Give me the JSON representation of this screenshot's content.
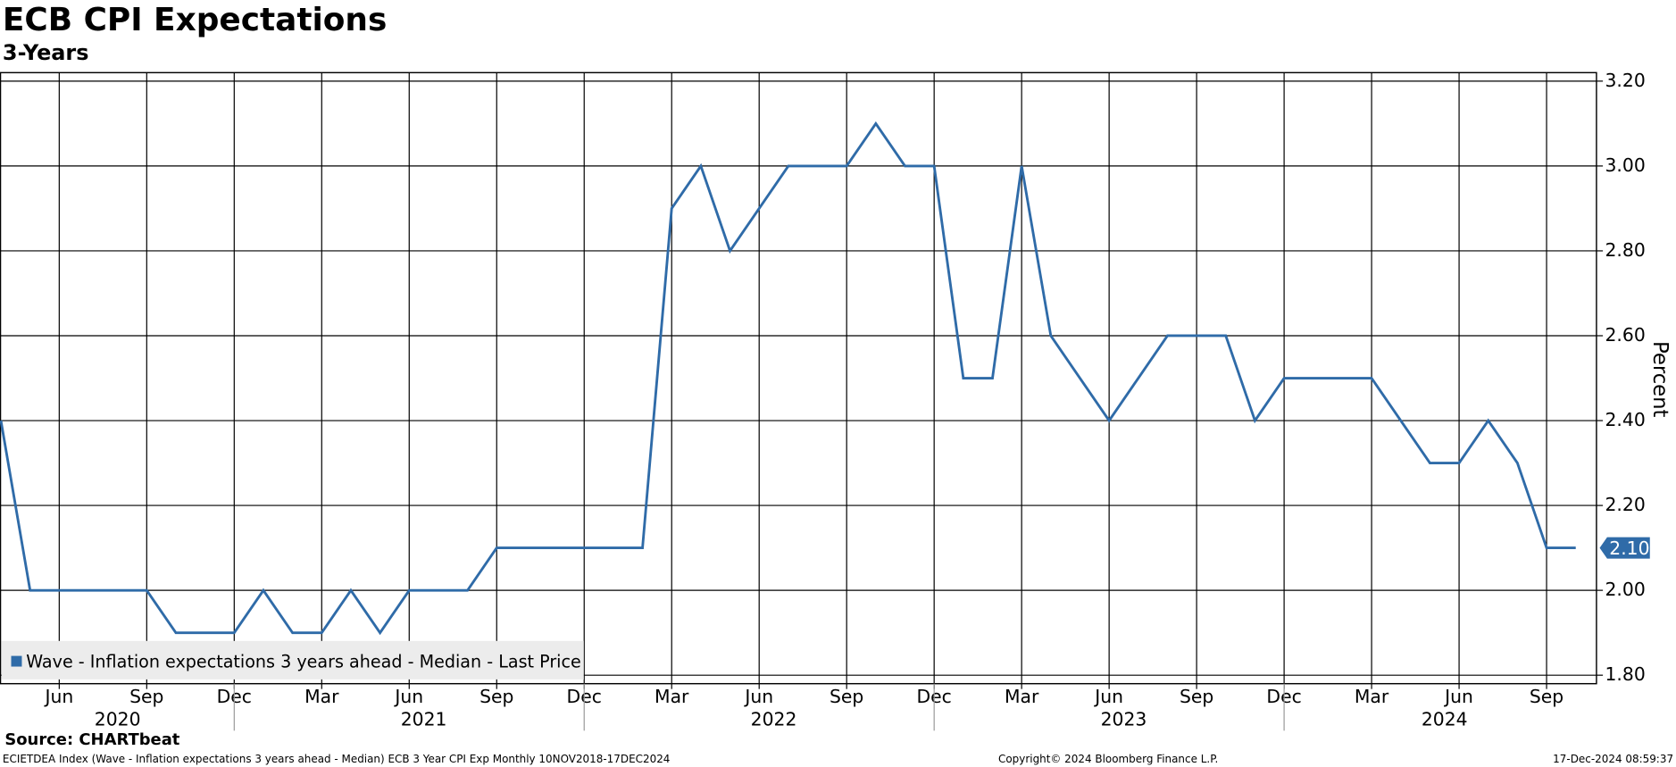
{
  "chart_data": {
    "type": "line",
    "title": "ECB CPI Expectations",
    "subtitle": "3-Years",
    "y_label": "Percent",
    "x": [
      "2020-04",
      "2020-05",
      "2020-06",
      "2020-07",
      "2020-08",
      "2020-09",
      "2020-10",
      "2020-11",
      "2020-12",
      "2021-01",
      "2021-02",
      "2021-03",
      "2021-04",
      "2021-05",
      "2021-06",
      "2021-07",
      "2021-08",
      "2021-09",
      "2021-10",
      "2021-11",
      "2021-12",
      "2022-01",
      "2022-02",
      "2022-03",
      "2022-04",
      "2022-05",
      "2022-06",
      "2022-07",
      "2022-08",
      "2022-09",
      "2022-10",
      "2022-11",
      "2022-12",
      "2023-01",
      "2023-02",
      "2023-03",
      "2023-04",
      "2023-05",
      "2023-06",
      "2023-07",
      "2023-08",
      "2023-09",
      "2023-10",
      "2023-11",
      "2023-12",
      "2024-01",
      "2024-02",
      "2024-03",
      "2024-04",
      "2024-05",
      "2024-06",
      "2024-07",
      "2024-08",
      "2024-09",
      "2024-10"
    ],
    "series": [
      {
        "name": "Wave - Inflation expectations 3 years ahead - Median - Last Price",
        "color": "#2f6ba8",
        "last_label": "2.10",
        "values": [
          2.4,
          2.0,
          2.0,
          2.0,
          2.0,
          2.0,
          1.9,
          1.9,
          1.9,
          2.0,
          1.9,
          1.9,
          2.0,
          1.9,
          2.0,
          2.0,
          2.0,
          2.1,
          2.1,
          2.1,
          2.1,
          2.1,
          2.1,
          2.9,
          3.0,
          2.8,
          2.9,
          3.0,
          3.0,
          3.0,
          3.1,
          3.0,
          3.0,
          2.5,
          2.5,
          3.0,
          2.6,
          2.5,
          2.4,
          2.5,
          2.6,
          2.6,
          2.6,
          2.4,
          2.5,
          2.5,
          2.5,
          2.5,
          2.4,
          2.3,
          2.3,
          2.4,
          2.3,
          2.1,
          2.1
        ]
      }
    ],
    "xticks": [
      {
        "value": "2020-06",
        "label": "Jun"
      },
      {
        "value": "2020-09",
        "label": "Sep"
      },
      {
        "value": "2020-12",
        "label": "Dec"
      },
      {
        "value": "2021-03",
        "label": "Mar"
      },
      {
        "value": "2021-06",
        "label": "Jun"
      },
      {
        "value": "2021-09",
        "label": "Sep"
      },
      {
        "value": "2021-12",
        "label": "Dec"
      },
      {
        "value": "2022-03",
        "label": "Mar"
      },
      {
        "value": "2022-06",
        "label": "Jun"
      },
      {
        "value": "2022-09",
        "label": "Sep"
      },
      {
        "value": "2022-12",
        "label": "Dec"
      },
      {
        "value": "2023-03",
        "label": "Mar"
      },
      {
        "value": "2023-06",
        "label": "Jun"
      },
      {
        "value": "2023-09",
        "label": "Sep"
      },
      {
        "value": "2023-12",
        "label": "Dec"
      },
      {
        "value": "2024-03",
        "label": "Mar"
      },
      {
        "value": "2024-06",
        "label": "Jun"
      },
      {
        "value": "2024-09",
        "label": "Sep"
      }
    ],
    "year_labels": [
      "2020",
      "2021",
      "2022",
      "2023",
      "2024"
    ],
    "ylim": [
      1.78,
      3.22
    ],
    "yticks": [
      {
        "value": 1.8,
        "label": "1.80"
      },
      {
        "value": 2.0,
        "label": "2.00"
      },
      {
        "value": 2.2,
        "label": "2.20"
      },
      {
        "value": 2.4,
        "label": "2.40"
      },
      {
        "value": 2.6,
        "label": "2.60"
      },
      {
        "value": 2.8,
        "label": "2.80"
      },
      {
        "value": 3.0,
        "label": "3.00"
      },
      {
        "value": 3.2,
        "label": "3.20"
      }
    ],
    "grid": true,
    "legend": "bottom-left"
  },
  "source": "Source: CHARTbeat",
  "footer": {
    "left": "ECIETDEA Index (Wave - Inflation expectations 3 years ahead - Median) ECB 3 Year CPI Exp  Monthly 10NOV2018-17DEC2024",
    "center": "Copyright© 2024 Bloomberg Finance L.P.",
    "right": "17-Dec-2024 08:59:37"
  }
}
